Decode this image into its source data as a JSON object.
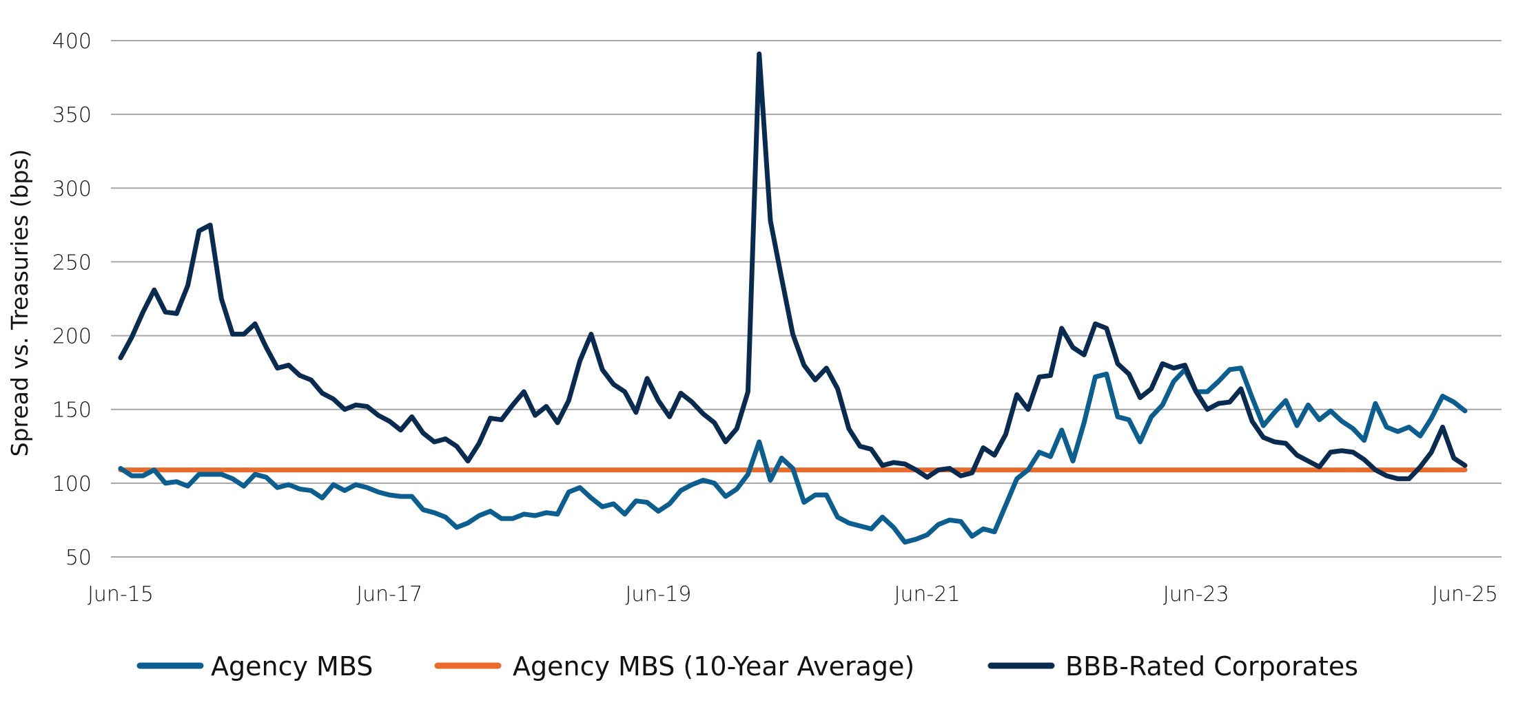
{
  "chart_data": {
    "type": "line",
    "title": "",
    "xlabel": "",
    "ylabel": "Spread vs. Treasuries (bps)",
    "ylim": [
      50,
      400
    ],
    "yticks": [
      50,
      100,
      150,
      200,
      250,
      300,
      350,
      400
    ],
    "x_start": "Jun-15",
    "x_end": "Jun-25",
    "x_frequency": "monthly",
    "xtick_labels": [
      "Jun-15",
      "Jun-17",
      "Jun-19",
      "Jun-21",
      "Jun-23",
      "Jun-25"
    ],
    "grid": "horizontal",
    "legend_position": "bottom",
    "series": [
      {
        "name": "Agency MBS",
        "color": "#0b5e8e",
        "values": [
          110,
          105,
          105,
          109,
          100,
          101,
          98,
          106,
          106,
          106,
          103,
          98,
          106,
          104,
          97,
          99,
          96,
          95,
          90,
          99,
          95,
          99,
          97,
          94,
          92,
          91,
          91,
          82,
          80,
          77,
          70,
          73,
          78,
          81,
          76,
          76,
          79,
          78,
          80,
          79,
          94,
          97,
          90,
          84,
          86,
          79,
          88,
          87,
          81,
          86,
          95,
          99,
          102,
          100,
          91,
          96,
          106,
          128,
          102,
          117,
          110,
          87,
          92,
          92,
          77,
          73,
          71,
          69,
          77,
          70,
          60,
          62,
          65,
          72,
          75,
          74,
          64,
          69,
          67,
          85,
          103,
          109,
          121,
          118,
          136,
          115,
          141,
          172,
          174,
          145,
          143,
          128,
          145,
          153,
          169,
          177,
          162,
          162,
          169,
          177,
          178,
          158,
          139,
          148,
          156,
          139,
          153,
          143,
          149,
          142,
          137,
          129,
          154,
          138,
          135,
          138,
          132,
          144,
          159,
          155,
          149
        ]
      },
      {
        "name": "Agency MBS (10-Year Average)",
        "color": "#ea6a2c",
        "values": [
          109
        ]
      },
      {
        "name": "BBB-Rated Corporates",
        "color": "#0a2b50",
        "values": [
          185,
          199,
          216,
          231,
          216,
          215,
          234,
          271,
          275,
          225,
          201,
          201,
          208,
          192,
          178,
          180,
          173,
          170,
          161,
          157,
          150,
          153,
          152,
          146,
          142,
          136,
          145,
          134,
          128,
          130,
          125,
          115,
          127,
          144,
          143,
          153,
          162,
          146,
          152,
          141,
          156,
          183,
          201,
          177,
          167,
          162,
          148,
          171,
          156,
          145,
          161,
          155,
          147,
          141,
          128,
          137,
          162,
          391,
          278,
          239,
          201,
          180,
          170,
          178,
          164,
          137,
          125,
          123,
          112,
          114,
          113,
          109,
          104,
          109,
          110,
          105,
          107,
          124,
          119,
          133,
          160,
          150,
          172,
          173,
          205,
          192,
          187,
          208,
          205,
          181,
          174,
          158,
          164,
          181,
          178,
          180,
          162,
          150,
          154,
          155,
          164,
          142,
          131,
          128,
          127,
          119,
          115,
          111,
          121,
          122,
          121,
          116,
          109,
          105,
          103,
          103,
          111,
          121,
          138,
          117,
          112
        ]
      }
    ]
  }
}
